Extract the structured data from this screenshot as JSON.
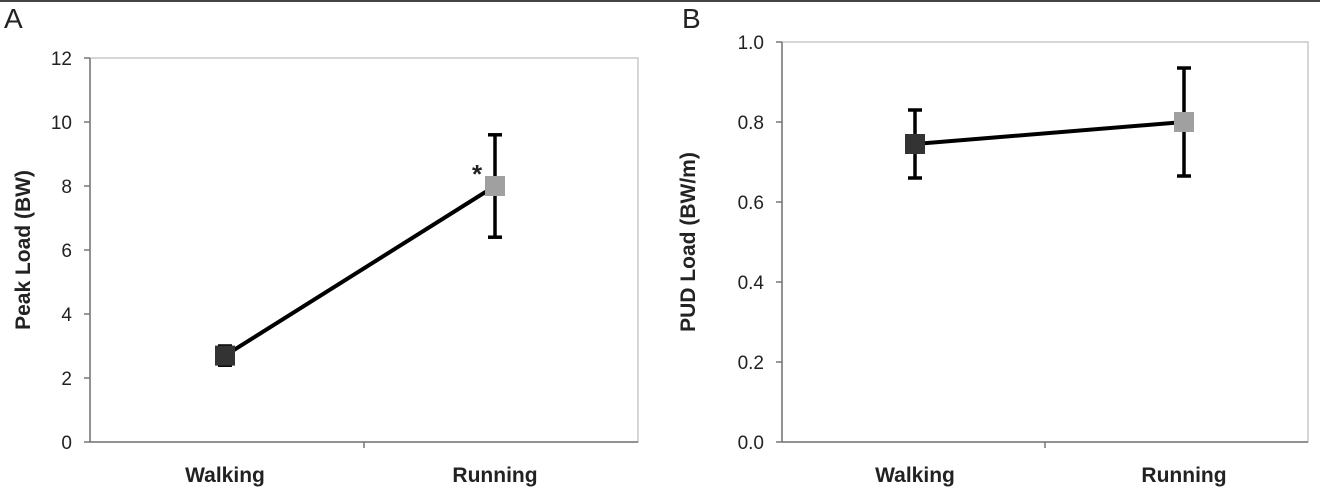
{
  "chart_data": [
    {
      "type": "line",
      "panel_label": "A",
      "ylabel": "Peak Load (BW)",
      "xlabel": "",
      "categories": [
        "Walking",
        "Running"
      ],
      "values": [
        2.7,
        8.0
      ],
      "error": [
        0.3,
        1.6
      ],
      "point_colors": [
        "#333333",
        "#a0a0a0"
      ],
      "ylim": [
        0,
        12
      ],
      "yticks": [
        "0",
        "2",
        "4",
        "6",
        "8",
        "10",
        "12"
      ],
      "annotation": "*",
      "grid": false
    },
    {
      "type": "line",
      "panel_label": "B",
      "ylabel": "PUD Load (BW/m)",
      "xlabel": "",
      "categories": [
        "Walking",
        "Running"
      ],
      "values": [
        0.745,
        0.8
      ],
      "error": [
        0.085,
        0.135
      ],
      "point_colors": [
        "#333333",
        "#a0a0a0"
      ],
      "ylim": [
        0,
        1.0
      ],
      "yticks": [
        "0.0",
        "0.2",
        "0.4",
        "0.6",
        "0.8",
        "1.0"
      ],
      "grid": false
    }
  ]
}
